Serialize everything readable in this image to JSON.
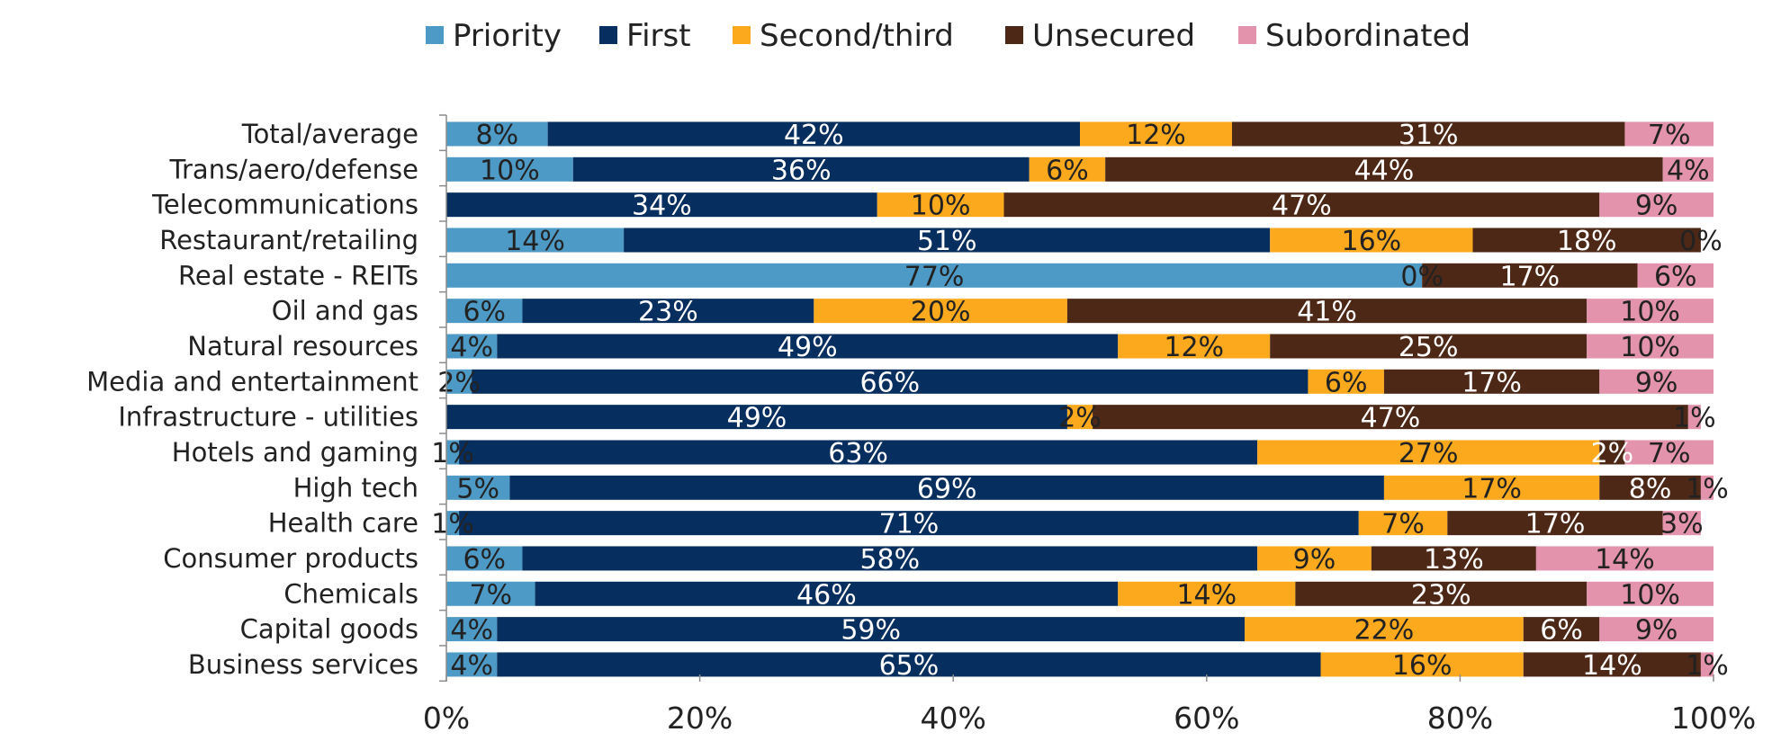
{
  "chart_data": {
    "type": "bar",
    "orientation": "horizontal",
    "stacked": "percent",
    "title": "",
    "xlabel": "",
    "ylabel": "",
    "xlim": [
      0,
      100
    ],
    "x_ticks": [
      "0%",
      "20%",
      "40%",
      "60%",
      "80%",
      "100%"
    ],
    "legend_position": "top",
    "grid": false,
    "categories": [
      "Total/average",
      "Trans/aero/defense",
      "Telecommunications",
      "Restaurant/retailing",
      "Real estate - REITs",
      "Oil and gas",
      "Natural resources",
      "Media and entertainment",
      "Infrastructure - utilities",
      "Hotels and gaming",
      "High tech",
      "Health care",
      "Consumer products",
      "Chemicals",
      "Capital goods",
      "Business services"
    ],
    "series": [
      {
        "name": "Priority",
        "color": "#4e9ac6",
        "label_color": "#222222",
        "values": [
          8,
          10,
          0,
          14,
          77,
          6,
          4,
          2,
          0,
          1,
          5,
          1,
          6,
          7,
          4,
          4
        ],
        "labels": [
          "8%",
          "10%",
          "",
          "14%",
          "77%",
          "6%",
          "4%",
          "2%",
          "",
          "1%",
          "5%",
          "1%",
          "6%",
          "7%",
          "4%",
          "4%"
        ]
      },
      {
        "name": "First",
        "color": "#062e5f",
        "label_color": "#ffffff",
        "values": [
          42,
          36,
          34,
          51,
          0,
          23,
          49,
          66,
          49,
          63,
          69,
          71,
          58,
          46,
          59,
          65
        ],
        "labels": [
          "42%",
          "36%",
          "34%",
          "51%",
          "",
          "23%",
          "49%",
          "66%",
          "49%",
          "63%",
          "69%",
          "71%",
          "58%",
          "46%",
          "59%",
          "65%"
        ]
      },
      {
        "name": "Second/third",
        "color": "#fda91e",
        "label_color": "#222222",
        "values": [
          12,
          6,
          10,
          16,
          0,
          20,
          12,
          6,
          2,
          27,
          17,
          7,
          9,
          14,
          22,
          16
        ],
        "labels": [
          "12%",
          "6%",
          "10%",
          "16%",
          "0%",
          "20%",
          "12%",
          "6%",
          "2%",
          "27%",
          "17%",
          "7%",
          "9%",
          "14%",
          "22%",
          "16%"
        ]
      },
      {
        "name": "Unsecured",
        "color": "#4e2817",
        "label_color": "#ffffff",
        "values": [
          31,
          44,
          47,
          18,
          17,
          41,
          25,
          17,
          47,
          2,
          8,
          17,
          13,
          23,
          6,
          14
        ],
        "labels": [
          "31%",
          "44%",
          "47%",
          "18%",
          "17%",
          "41%",
          "25%",
          "17%",
          "47%",
          "2%",
          "8%",
          "17%",
          "13%",
          "23%",
          "6%",
          "14%"
        ]
      },
      {
        "name": "Subordinated",
        "color": "#e393ab",
        "label_color": "#222222",
        "values": [
          7,
          4,
          9,
          0,
          6,
          10,
          10,
          9,
          1,
          7,
          1,
          3,
          14,
          10,
          9,
          1
        ],
        "labels": [
          "7%",
          "4%",
          "9%",
          "0%",
          "6%",
          "10%",
          "10%",
          "9%",
          "1%",
          "7%",
          "1%",
          "3%",
          "14%",
          "10%",
          "9%",
          "1%"
        ]
      }
    ]
  }
}
